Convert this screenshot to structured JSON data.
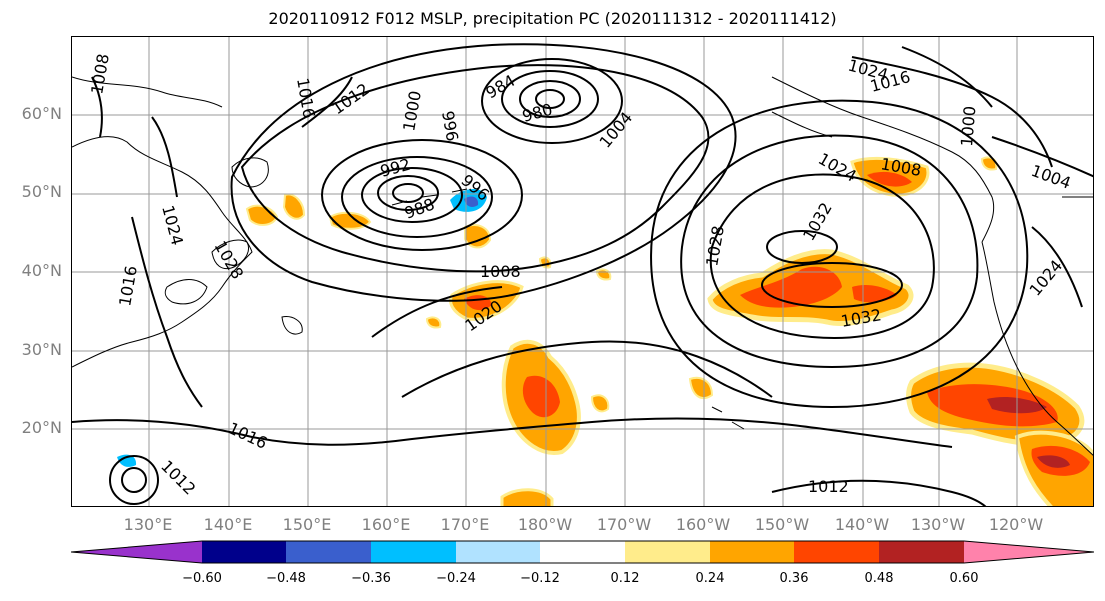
{
  "title": "2020110912 F012 MSLP, precipitation PC (2020111312 - 2020111412)",
  "latitude_labels": [
    "60°N",
    "50°N",
    "40°N",
    "30°N",
    "20°N"
  ],
  "longitude_labels": [
    "130°E",
    "140°E",
    "150°E",
    "160°E",
    "170°E",
    "180°W",
    "170°W",
    "160°W",
    "150°W",
    "140°W",
    "130°W",
    "120°W"
  ],
  "isobar_labels": [
    "1016",
    "1012",
    "1008",
    "1016",
    "992",
    "988",
    "996",
    "1000",
    "996",
    "984",
    "980",
    "1004",
    "1008",
    "1024",
    "1016",
    "1000",
    "1024",
    "1032",
    "1028",
    "1008",
    "1020",
    "1024",
    "1028",
    "1032",
    "1024",
    "1004",
    "1016",
    "1012",
    "1012"
  ],
  "colorbar": {
    "ticks": [
      "−0.60",
      "−0.48",
      "−0.36",
      "−0.24",
      "−0.12",
      "0.12",
      "0.24",
      "0.36",
      "0.48",
      "0.60"
    ],
    "colors": [
      "#9932cc",
      "#00008b",
      "#3a5fcd",
      "#00bfff",
      "#b0e2ff",
      "#ffffff",
      "#ffec8b",
      "#ffa500",
      "#ff4500",
      "#b22222",
      "#ff82ab"
    ]
  },
  "colors": {
    "land_outline": "#000000",
    "grid": "#999999",
    "tick_label": "#808080"
  }
}
